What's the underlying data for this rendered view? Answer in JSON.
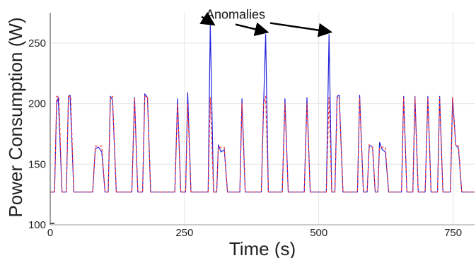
{
  "chart_data": {
    "type": "line",
    "title": "",
    "xlabel": "Time (s)",
    "ylabel": "Power Consumption (W)",
    "xlim": [
      0,
      790
    ],
    "ylim": [
      100,
      275
    ],
    "xticks": [
      0,
      250,
      500,
      750
    ],
    "yticks": [
      100,
      150,
      200,
      250
    ],
    "grid": true,
    "legend": "none",
    "colors": {
      "measured": "#2222dd",
      "predicted": "#ff3333"
    },
    "annotation": {
      "text": "Anomalies",
      "text_at": [
        345,
        270
      ],
      "arrow_targets": [
        [
          298,
          266
        ],
        [
          401,
          257
        ],
        [
          519,
          257
        ]
      ]
    },
    "series": [
      {
        "key": "measured",
        "style": "solid",
        "points": [
          [
            0,
            127
          ],
          [
            8,
            127
          ],
          [
            12,
            200
          ],
          [
            15,
            205
          ],
          [
            22,
            127
          ],
          [
            30,
            127
          ],
          [
            34,
            206
          ],
          [
            37,
            207
          ],
          [
            44,
            127
          ],
          [
            60,
            127
          ],
          [
            70,
            127
          ],
          [
            79,
            127
          ],
          [
            84,
            163
          ],
          [
            90,
            164
          ],
          [
            96,
            160
          ],
          [
            102,
            127
          ],
          [
            108,
            127
          ],
          [
            112,
            206
          ],
          [
            116,
            203
          ],
          [
            123,
            127
          ],
          [
            140,
            127
          ],
          [
            152,
            127
          ],
          [
            157,
            205
          ],
          [
            163,
            127
          ],
          [
            172,
            127
          ],
          [
            176,
            208
          ],
          [
            181,
            205
          ],
          [
            187,
            127
          ],
          [
            200,
            127
          ],
          [
            220,
            127
          ],
          [
            232,
            127
          ],
          [
            237,
            204
          ],
          [
            243,
            127
          ],
          [
            252,
            127
          ],
          [
            256,
            209
          ],
          [
            262,
            127
          ],
          [
            280,
            127
          ],
          [
            290,
            127
          ],
          [
            294,
            127
          ],
          [
            298,
            266
          ],
          [
            304,
            127
          ],
          [
            310,
            127
          ],
          [
            313,
            166
          ],
          [
            318,
            160
          ],
          [
            324,
            162
          ],
          [
            330,
            127
          ],
          [
            350,
            127
          ],
          [
            353,
            127
          ],
          [
            357,
            204
          ],
          [
            363,
            127
          ],
          [
            380,
            127
          ],
          [
            393,
            127
          ],
          [
            397,
            195
          ],
          [
            401,
            257
          ],
          [
            406,
            127
          ],
          [
            420,
            127
          ],
          [
            432,
            127
          ],
          [
            437,
            204
          ],
          [
            443,
            127
          ],
          [
            460,
            127
          ],
          [
            473,
            127
          ],
          [
            478,
            205
          ],
          [
            484,
            127
          ],
          [
            500,
            127
          ],
          [
            514,
            127
          ],
          [
            519,
            257
          ],
          [
            524,
            127
          ],
          [
            530,
            127
          ],
          [
            534,
            206
          ],
          [
            538,
            207
          ],
          [
            545,
            127
          ],
          [
            560,
            127
          ],
          [
            572,
            127
          ],
          [
            576,
            207
          ],
          [
            583,
            127
          ],
          [
            590,
            127
          ],
          [
            594,
            166
          ],
          [
            600,
            164
          ],
          [
            605,
            127
          ],
          [
            610,
            127
          ],
          [
            613,
            168
          ],
          [
            618,
            162
          ],
          [
            624,
            160
          ],
          [
            630,
            127
          ],
          [
            645,
            127
          ],
          [
            654,
            127
          ],
          [
            658,
            206
          ],
          [
            664,
            127
          ],
          [
            670,
            127
          ],
          [
            675,
            127
          ],
          [
            679,
            206
          ],
          [
            685,
            127
          ],
          [
            690,
            127
          ],
          [
            698,
            127
          ],
          [
            703,
            206
          ],
          [
            709,
            127
          ],
          [
            715,
            127
          ],
          [
            721,
            127
          ],
          [
            725,
            206
          ],
          [
            731,
            127
          ],
          [
            737,
            127
          ],
          [
            745,
            127
          ],
          [
            749,
            205
          ],
          [
            755,
            166
          ],
          [
            760,
            163
          ],
          [
            766,
            127
          ],
          [
            790,
            127
          ]
        ]
      },
      {
        "key": "predicted",
        "style": "dashed",
        "points": [
          [
            0,
            127
          ],
          [
            8,
            127
          ],
          [
            12,
            206
          ],
          [
            16,
            206
          ],
          [
            22,
            127
          ],
          [
            30,
            127
          ],
          [
            34,
            206
          ],
          [
            38,
            206
          ],
          [
            44,
            127
          ],
          [
            60,
            127
          ],
          [
            70,
            127
          ],
          [
            79,
            127
          ],
          [
            84,
            165
          ],
          [
            90,
            165
          ],
          [
            96,
            165
          ],
          [
            102,
            127
          ],
          [
            108,
            127
          ],
          [
            112,
            206
          ],
          [
            116,
            206
          ],
          [
            123,
            127
          ],
          [
            140,
            127
          ],
          [
            152,
            127
          ],
          [
            157,
            205
          ],
          [
            163,
            127
          ],
          [
            172,
            127
          ],
          [
            176,
            206
          ],
          [
            181,
            206
          ],
          [
            187,
            127
          ],
          [
            200,
            127
          ],
          [
            220,
            127
          ],
          [
            232,
            127
          ],
          [
            237,
            200
          ],
          [
            243,
            127
          ],
          [
            252,
            127
          ],
          [
            256,
            200
          ],
          [
            262,
            127
          ],
          [
            280,
            127
          ],
          [
            290,
            127
          ],
          [
            294,
            127
          ],
          [
            298,
            205
          ],
          [
            304,
            127
          ],
          [
            310,
            127
          ],
          [
            313,
            164
          ],
          [
            318,
            164
          ],
          [
            324,
            164
          ],
          [
            330,
            127
          ],
          [
            350,
            127
          ],
          [
            353,
            127
          ],
          [
            357,
            200
          ],
          [
            363,
            127
          ],
          [
            380,
            127
          ],
          [
            393,
            127
          ],
          [
            397,
            200
          ],
          [
            401,
            206
          ],
          [
            406,
            127
          ],
          [
            420,
            127
          ],
          [
            432,
            127
          ],
          [
            437,
            200
          ],
          [
            443,
            127
          ],
          [
            460,
            127
          ],
          [
            473,
            127
          ],
          [
            478,
            200
          ],
          [
            484,
            127
          ],
          [
            500,
            127
          ],
          [
            514,
            127
          ],
          [
            519,
            205
          ],
          [
            524,
            127
          ],
          [
            530,
            127
          ],
          [
            534,
            205
          ],
          [
            538,
            205
          ],
          [
            545,
            127
          ],
          [
            560,
            127
          ],
          [
            572,
            127
          ],
          [
            576,
            205
          ],
          [
            583,
            127
          ],
          [
            590,
            127
          ],
          [
            594,
            166
          ],
          [
            600,
            164
          ],
          [
            605,
            127
          ],
          [
            610,
            127
          ],
          [
            613,
            164
          ],
          [
            618,
            164
          ],
          [
            624,
            164
          ],
          [
            630,
            127
          ],
          [
            645,
            127
          ],
          [
            654,
            127
          ],
          [
            658,
            205
          ],
          [
            664,
            127
          ],
          [
            670,
            127
          ],
          [
            675,
            127
          ],
          [
            679,
            205
          ],
          [
            685,
            127
          ],
          [
            690,
            127
          ],
          [
            698,
            127
          ],
          [
            703,
            205
          ],
          [
            709,
            127
          ],
          [
            715,
            127
          ],
          [
            721,
            127
          ],
          [
            725,
            205
          ],
          [
            731,
            127
          ],
          [
            737,
            127
          ],
          [
            745,
            127
          ],
          [
            749,
            205
          ],
          [
            755,
            165
          ],
          [
            760,
            165
          ],
          [
            766,
            127
          ],
          [
            790,
            127
          ]
        ]
      }
    ]
  }
}
